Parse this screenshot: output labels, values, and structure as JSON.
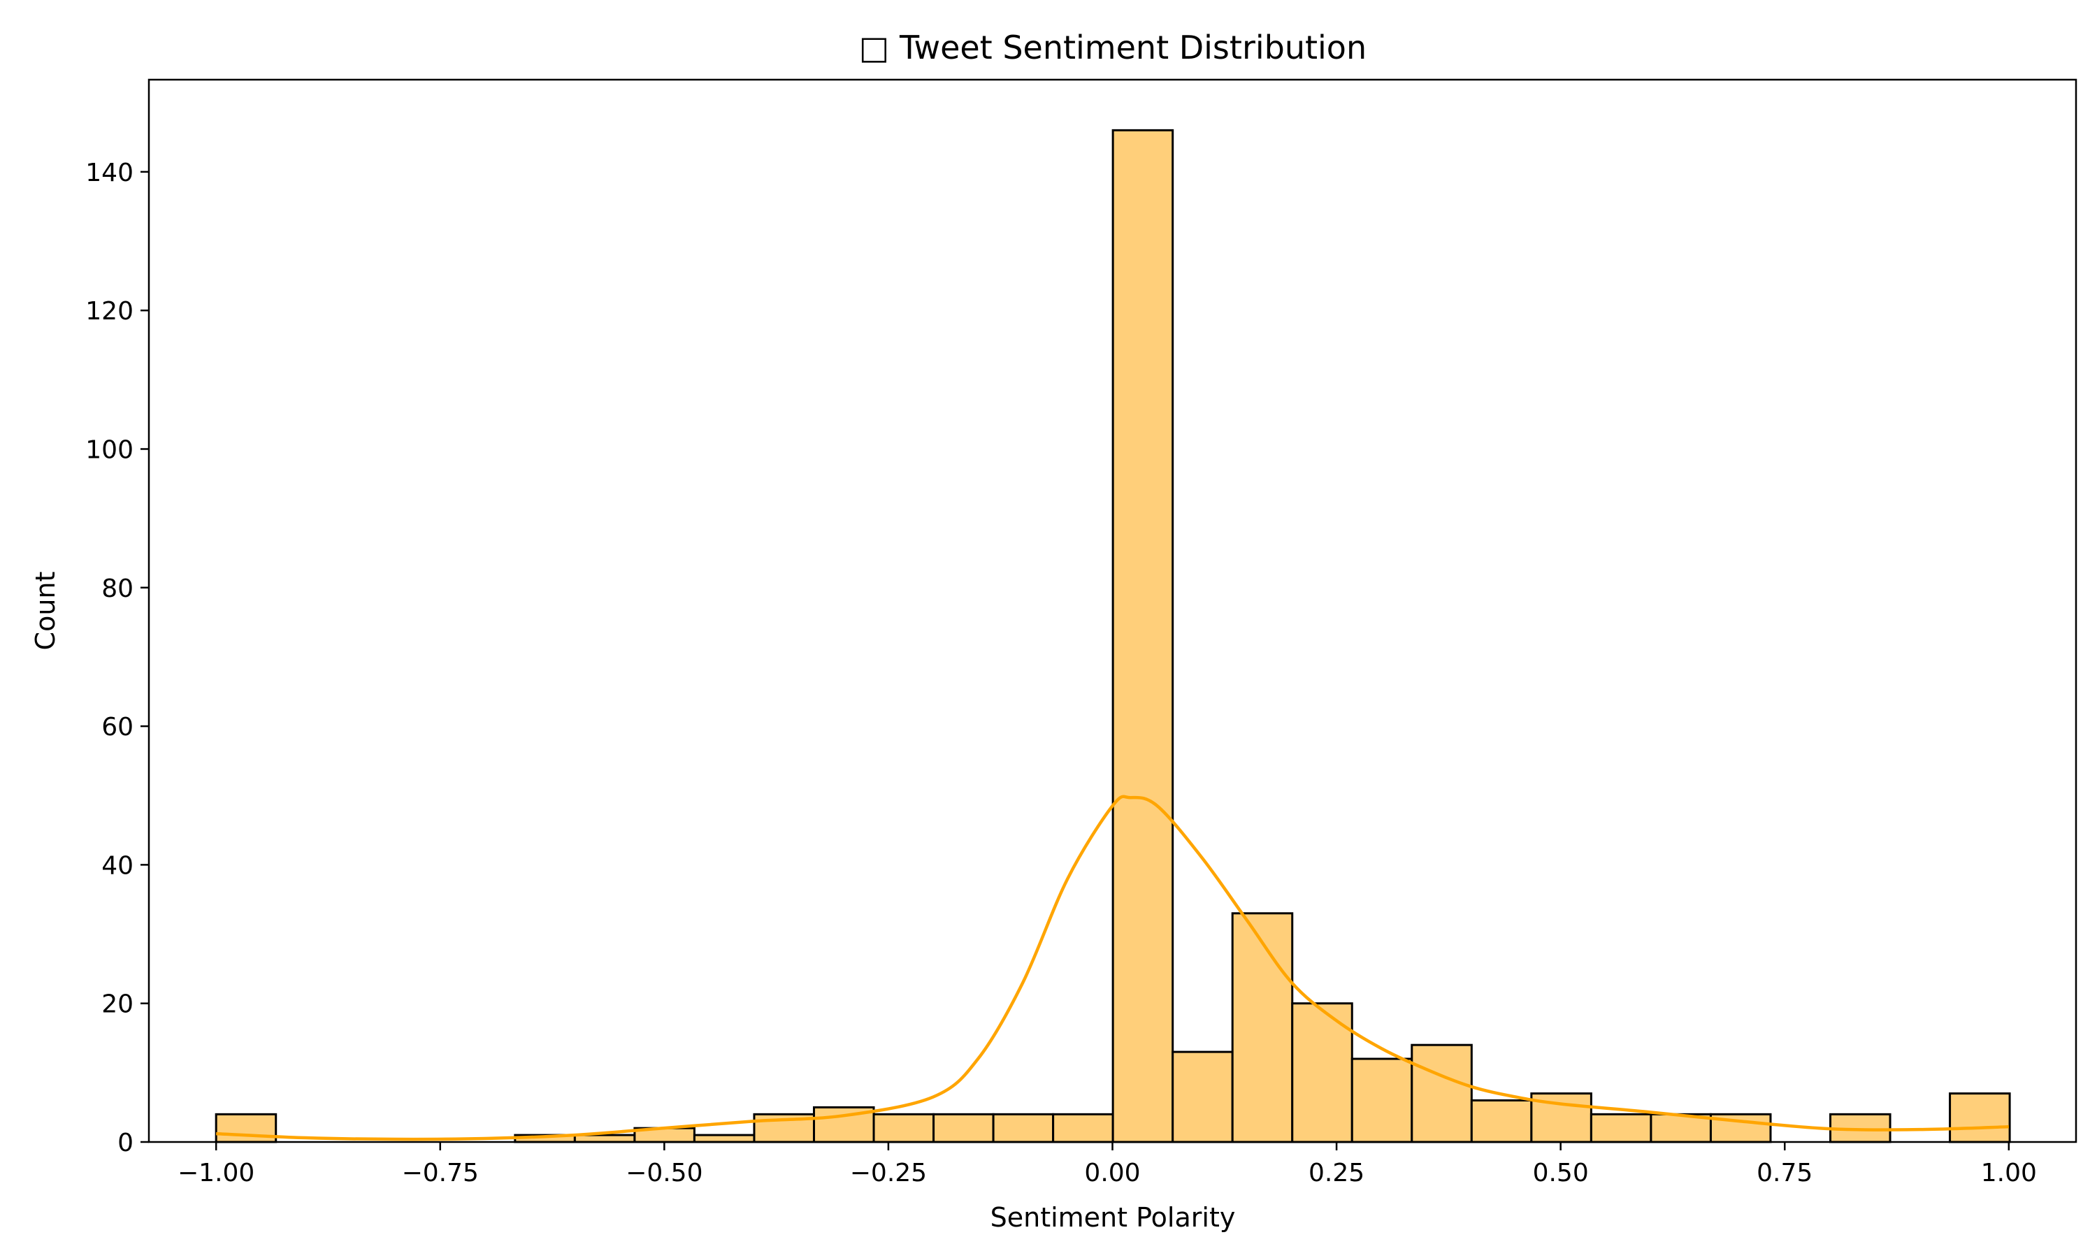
{
  "chart_data": {
    "type": "bar",
    "subtype": "histogram with kde line",
    "title": "□ Tweet Sentiment Distribution",
    "xlabel": "Sentiment Polarity",
    "ylabel": "Count",
    "xlim": [
      -1.075,
      1.075
    ],
    "ylim": [
      0,
      153.3
    ],
    "xticks": [
      -1.0,
      -0.75,
      -0.5,
      -0.25,
      0.0,
      0.25,
      0.5,
      0.75,
      1.0
    ],
    "xtick_labels": [
      "−1.00",
      "−0.75",
      "−0.50",
      "−0.25",
      "0.00",
      "0.25",
      "0.50",
      "0.75",
      "1.00"
    ],
    "yticks": [
      0,
      20,
      40,
      60,
      80,
      100,
      120,
      140
    ],
    "ytick_labels": [
      "0",
      "20",
      "40",
      "60",
      "80",
      "100",
      "120",
      "140"
    ],
    "grid": false,
    "bar_color": "#ffcf7a",
    "edge_color": "#000000",
    "kde_color": "#ffa500",
    "bins": {
      "start": -1.0,
      "width": 0.0667,
      "counts": [
        4,
        0,
        0,
        0,
        0,
        1,
        1,
        2,
        1,
        4,
        5,
        4,
        4,
        4,
        4,
        146,
        13,
        33,
        20,
        12,
        14,
        6,
        7,
        4,
        4,
        4,
        0,
        4,
        0,
        7
      ]
    },
    "kde": {
      "x": [
        -1.0,
        -0.9,
        -0.8,
        -0.7,
        -0.6,
        -0.5,
        -0.4,
        -0.3,
        -0.2,
        -0.15,
        -0.1,
        -0.05,
        0.0,
        0.02,
        0.05,
        0.1,
        0.15,
        0.2,
        0.25,
        0.3,
        0.35,
        0.4,
        0.45,
        0.5,
        0.6,
        0.7,
        0.8,
        0.9,
        1.0
      ],
      "y": [
        1.2,
        0.6,
        0.4,
        0.5,
        1.0,
        2.0,
        3.0,
        3.8,
        6.5,
        12.0,
        23.0,
        38.0,
        48.5,
        49.7,
        48.5,
        41.0,
        32.0,
        23.0,
        17.5,
        13.5,
        10.5,
        8.0,
        6.5,
        5.5,
        4.3,
        3.0,
        1.9,
        1.8,
        2.2
      ]
    }
  }
}
